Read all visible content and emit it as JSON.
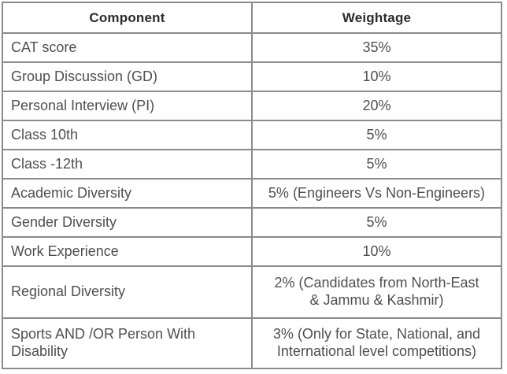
{
  "table": {
    "headers": [
      "Component",
      "Weightage"
    ],
    "rows": [
      {
        "component": "CAT score",
        "weightage": "35%"
      },
      {
        "component": "Group Discussion (GD)",
        "weightage": "10%"
      },
      {
        "component": "Personal Interview (PI)",
        "weightage": "20%"
      },
      {
        "component": "Class 10th",
        "weightage": "5%"
      },
      {
        "component": "Class -12th",
        "weightage": "5%"
      },
      {
        "component": "Academic Diversity",
        "weightage": "5% (Engineers Vs Non-Engineers)"
      },
      {
        "component": "Gender Diversity",
        "weightage": "5%"
      },
      {
        "component": "Work Experience",
        "weightage": "10%"
      },
      {
        "component": "Regional Diversity",
        "weightage": "2% (Candidates from North-East\n& Jammu & Kashmir)"
      },
      {
        "component": "Sports AND /OR Person With\nDisability",
        "weightage": "3% (Only for State, National, and\nInternational level competitions)"
      }
    ],
    "colors": {
      "border": "#8b8b8b",
      "header_text": "#2b2b2b",
      "body_text": "#4f4f4f",
      "background": "#ffffff"
    }
  }
}
